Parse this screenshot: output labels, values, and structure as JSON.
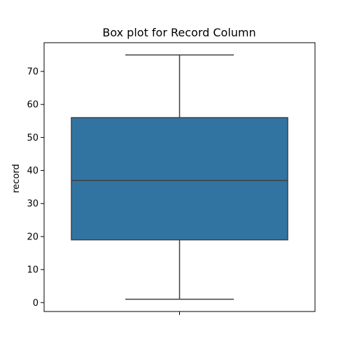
{
  "chart_data": {
    "type": "box",
    "title": "Box plot for Record Column",
    "xlabel": "",
    "ylabel": "record",
    "ylim": [
      -2.7,
      78.7
    ],
    "yticks": [
      0,
      10,
      20,
      30,
      40,
      50,
      60,
      70
    ],
    "grid": false,
    "legend": "none",
    "box": {
      "min": 1,
      "q1": 19,
      "median": 37,
      "q3": 56,
      "max": 75
    },
    "colors": {
      "box_fill": "#3274a1",
      "line": "#3f3f3f",
      "axis": "#000000"
    }
  }
}
